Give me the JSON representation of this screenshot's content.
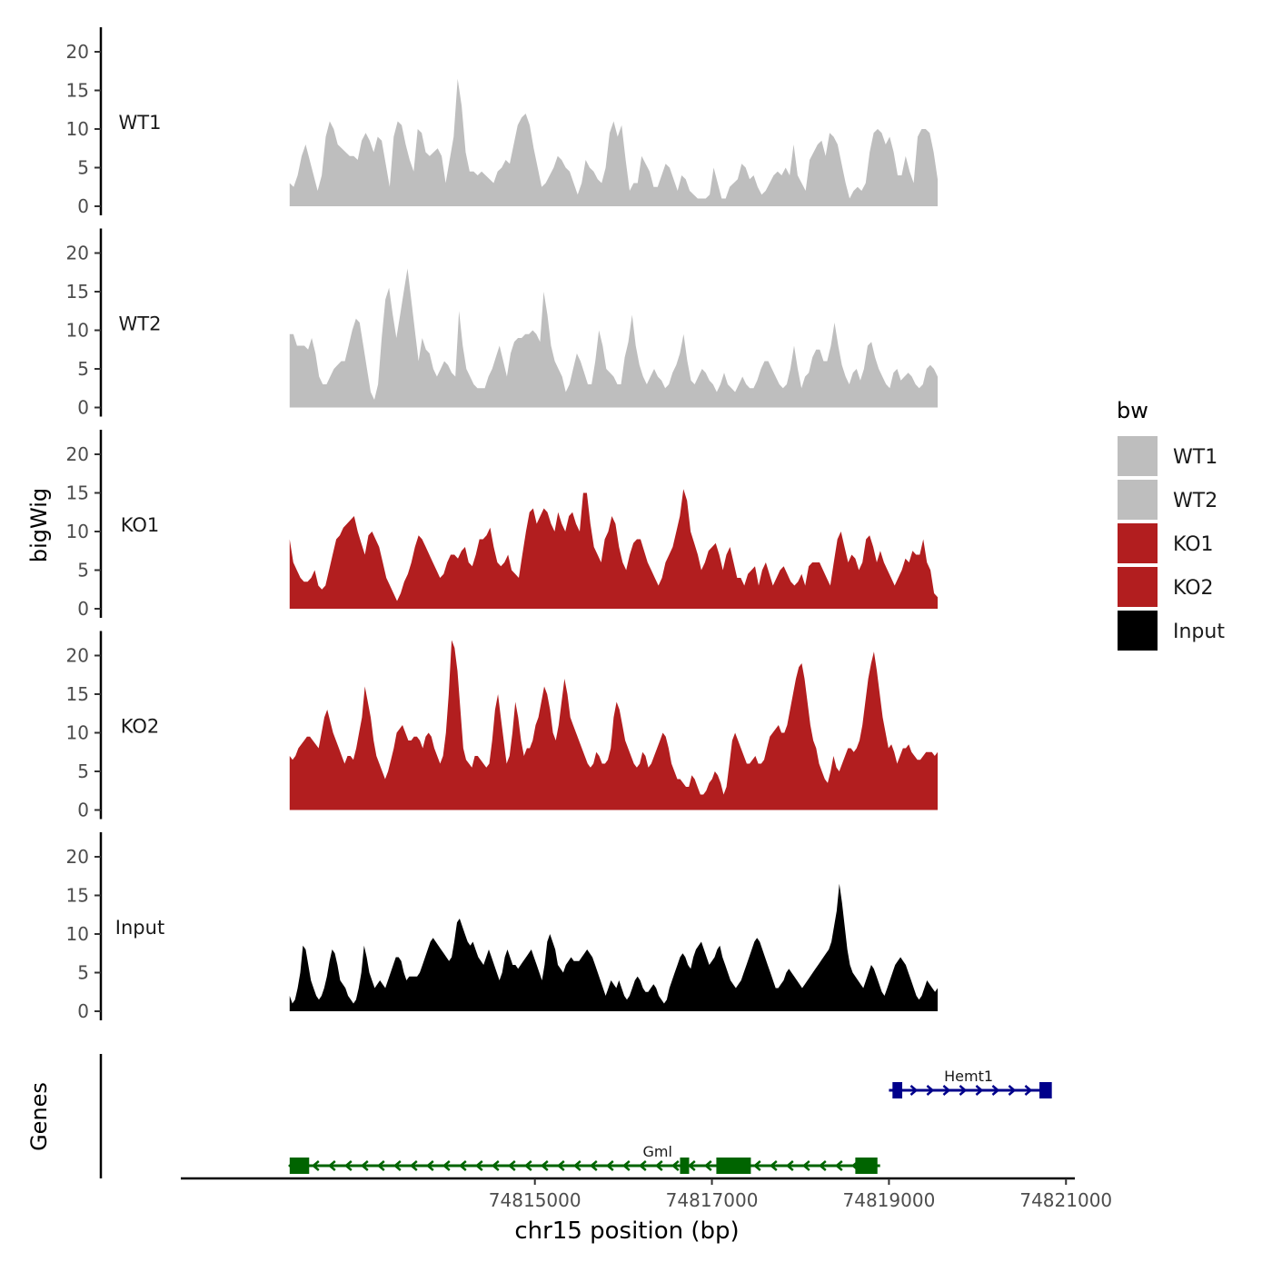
{
  "chart_data": {
    "type": "area",
    "title": "",
    "ylabel": "bigWig",
    "xlabel": "chr15 position (bp)",
    "ylim": [
      0,
      22
    ],
    "yticks": [
      0,
      5,
      10,
      15,
      20
    ],
    "xlim": [
      74811000,
      74821100
    ],
    "xticks": [
      74815000,
      74817000,
      74819000,
      74821000
    ],
    "xtick_labels": [
      "74815000",
      "74817000",
      "74819000",
      "74821000"
    ],
    "track_range": [
      74812230,
      74819550
    ],
    "legend": {
      "title": "bw",
      "position": "right",
      "entries": [
        {
          "label": "WT1",
          "color": "#bebebe"
        },
        {
          "label": "WT2",
          "color": "#bebebe"
        },
        {
          "label": "KO1",
          "color": "#b21e1f"
        },
        {
          "label": "KO2",
          "color": "#b21e1f"
        },
        {
          "label": "Input",
          "color": "#000000"
        }
      ]
    },
    "series": [
      {
        "name": "WT1",
        "color": "#bebebe",
        "values": [
          3,
          2.5,
          4,
          6.5,
          8,
          6,
          4,
          2,
          4,
          9,
          11,
          10,
          8,
          7.5,
          7,
          6.5,
          6.5,
          6,
          8.5,
          9.5,
          8.5,
          7,
          9,
          8.5,
          5.5,
          2.5,
          9,
          11,
          10.5,
          8,
          6,
          4.5,
          10,
          9.5,
          7,
          6.5,
          7,
          7.5,
          6.5,
          3,
          6,
          9,
          16.5,
          13,
          7,
          4.5,
          4.5,
          4,
          4.5,
          4,
          3.5,
          3,
          4.5,
          5,
          6,
          5.5,
          8,
          10.5,
          11.5,
          12,
          10.5,
          7.5,
          5,
          2.5,
          3,
          4,
          5,
          6.5,
          6,
          5,
          4.5,
          3,
          1.5,
          3,
          6,
          5,
          4.5,
          3.5,
          3,
          5,
          9.5,
          11,
          9,
          10.5,
          6,
          2,
          3,
          3,
          6.5,
          5.5,
          4.5,
          2.5,
          2.5,
          4,
          5.5,
          5,
          3.5,
          2,
          4,
          3.5,
          2,
          1.5,
          1,
          1,
          1,
          1.5,
          5,
          3,
          1,
          1,
          2.5,
          3,
          3.5,
          5.5,
          5,
          3.5,
          4,
          2.5,
          1.5,
          2,
          3,
          4,
          4.5,
          4,
          5,
          4,
          8,
          4,
          3,
          2,
          6,
          7,
          8,
          8.5,
          6.5,
          9.5,
          9,
          8,
          5.5,
          3,
          1,
          2,
          2.5,
          2,
          3,
          7,
          9.5,
          10,
          9.5,
          8,
          9,
          7,
          4,
          4,
          6.5,
          4.5,
          3,
          9,
          10,
          10,
          9.5,
          7,
          3.5
        ],
        "label": "WT1"
      },
      {
        "name": "WT2",
        "color": "#bebebe",
        "values": [
          9.5,
          9.5,
          8,
          8,
          8,
          7.5,
          9,
          7,
          4,
          3,
          3,
          4,
          5,
          5.5,
          6,
          6,
          8,
          10,
          11.5,
          11,
          8,
          5,
          2,
          1,
          3,
          9,
          14,
          15.5,
          12,
          9,
          12,
          15,
          18,
          14,
          10,
          6,
          9,
          7.5,
          7,
          5,
          4,
          5,
          6,
          5.5,
          4.5,
          4,
          12.5,
          8,
          5,
          4,
          3,
          2.5,
          2.5,
          2.5,
          4,
          5,
          6.5,
          8,
          6,
          4,
          7,
          8.5,
          9,
          9,
          9.5,
          9.5,
          10,
          9.5,
          8.5,
          15,
          12,
          8,
          6,
          5,
          4,
          2,
          3,
          5,
          7,
          6,
          4.5,
          3,
          3,
          6,
          10,
          8,
          5,
          4.5,
          4,
          3,
          3,
          6.5,
          8.5,
          12,
          8,
          5.5,
          4,
          3,
          4,
          5,
          4,
          3.5,
          2.5,
          3,
          4.5,
          5.5,
          7,
          9.5,
          6,
          3.5,
          3,
          4,
          5,
          4.5,
          3.5,
          3,
          2,
          3,
          4.5,
          3,
          2.5,
          2,
          3,
          4,
          3,
          2.5,
          2.5,
          3.5,
          5,
          6,
          6,
          5,
          4,
          3,
          2.5,
          3,
          5,
          8,
          5,
          2.5,
          4,
          4.5,
          6.5,
          7.5,
          7.5,
          6,
          6,
          8,
          11,
          8,
          5.5,
          4,
          3,
          4.5,
          5,
          3.5,
          5,
          8,
          8.5,
          6.5,
          5,
          4,
          3,
          2.5,
          4.5,
          5,
          3.5,
          4,
          4.5,
          4,
          3,
          2.5,
          3,
          5,
          5.5,
          5,
          4
        ]
      },
      {
        "name": "KO1",
        "color": "#b21e1f",
        "values": [
          9,
          6,
          5,
          4,
          3.5,
          3.5,
          4,
          5,
          3,
          2.5,
          3,
          5,
          7,
          9,
          9.5,
          10.5,
          11,
          11.5,
          12,
          10,
          8.5,
          7,
          9.5,
          10,
          9,
          8,
          6,
          4,
          3,
          2,
          1,
          2,
          3.5,
          4.5,
          6,
          8,
          9.5,
          9,
          8,
          7,
          6,
          5,
          4,
          4.5,
          6,
          7,
          7,
          6.5,
          7.5,
          8,
          6,
          5.5,
          7,
          9,
          9,
          9.5,
          10.5,
          8,
          6,
          5.5,
          6,
          7,
          5,
          4.5,
          4,
          7,
          10,
          12.5,
          13,
          11,
          12,
          13,
          12.5,
          11,
          10,
          12.5,
          11,
          10,
          12,
          12.5,
          11,
          10,
          15,
          15,
          11,
          8,
          7,
          6,
          9,
          10,
          12,
          11,
          8,
          6,
          5,
          7,
          8.5,
          9,
          9,
          7.5,
          6,
          5,
          4,
          3,
          4,
          6,
          7,
          8,
          10,
          12,
          15.5,
          14,
          10,
          8.5,
          7,
          5,
          6,
          7.5,
          8,
          8.5,
          7,
          5,
          7,
          8,
          6,
          4,
          4,
          3,
          4.5,
          5,
          5.5,
          3,
          5,
          6,
          4.5,
          3,
          4,
          5,
          5.5,
          4.5,
          3.5,
          3,
          3.5,
          4.5,
          3,
          5.5,
          6,
          6,
          6,
          5,
          4,
          3,
          6,
          9,
          10,
          8,
          6,
          7,
          6.5,
          5,
          6,
          9,
          9.5,
          8,
          6,
          7.5,
          6,
          5,
          4,
          3,
          4,
          5,
          6.5,
          6,
          7.5,
          7,
          7,
          9,
          6,
          5,
          2,
          1.5
        ]
      },
      {
        "name": "KO2",
        "color": "#b21e1f",
        "values": [
          7,
          6.5,
          7,
          8,
          8.5,
          9,
          9.5,
          9.5,
          9,
          8.5,
          8,
          10,
          12,
          13,
          11.5,
          10,
          9,
          8,
          7,
          6,
          7,
          7,
          6.5,
          8,
          10,
          12,
          16,
          14,
          12,
          9,
          7,
          6,
          5,
          4,
          5,
          6.5,
          8,
          10,
          10.5,
          11,
          10,
          9,
          9,
          9.5,
          9.5,
          9,
          8,
          9.5,
          10,
          9.5,
          8,
          7,
          6,
          7,
          10,
          15,
          22,
          21,
          18,
          13,
          8,
          6.5,
          6,
          5.5,
          7,
          7,
          6.5,
          6,
          5.5,
          6,
          9,
          13,
          15,
          12,
          9,
          6,
          7,
          10,
          14,
          12,
          9,
          7,
          8,
          8,
          9,
          11,
          12,
          14,
          16,
          15,
          13,
          10,
          9,
          11,
          14,
          17,
          15,
          12,
          11,
          10,
          9,
          8,
          7,
          6,
          5.5,
          6,
          7.5,
          7,
          6,
          6,
          6.5,
          8,
          12,
          14,
          13,
          11,
          9,
          8,
          7,
          6,
          5.5,
          6,
          7.5,
          7,
          5.5,
          6,
          7,
          8,
          9,
          10,
          9.5,
          8,
          6,
          5,
          4,
          4,
          3.5,
          3,
          3,
          4.5,
          4,
          3,
          2,
          2,
          2.5,
          3.5,
          4,
          5,
          4.5,
          3.5,
          2,
          3,
          6,
          9,
          10,
          9,
          8,
          7,
          6,
          6,
          6.5,
          7,
          6,
          6,
          6.5,
          8,
          9.5,
          10,
          10.5,
          11,
          10,
          10,
          11,
          13,
          15,
          17,
          18.5,
          19,
          17,
          14,
          11,
          9,
          8,
          6,
          5,
          4,
          3.5,
          5,
          7,
          5.5,
          5,
          6,
          7,
          8,
          8,
          7.5,
          8,
          9,
          11,
          14,
          17,
          19,
          20.5,
          18,
          15,
          12,
          10,
          8,
          8.5,
          7.5,
          6,
          7,
          8,
          8,
          8.5,
          7.5,
          7,
          6.5,
          6.5,
          7,
          7.5,
          7.5,
          7.5,
          7,
          7.5
        ]
      },
      {
        "name": "Input",
        "color": "#000000",
        "values": [
          2,
          1,
          1.5,
          3,
          5,
          8.5,
          8,
          6,
          4,
          3,
          2,
          1.5,
          2,
          3,
          4.5,
          6.5,
          8,
          7.5,
          6,
          4,
          3.5,
          3,
          2,
          1.5,
          1,
          1.5,
          3,
          5,
          8.5,
          7,
          5,
          4,
          3,
          3.5,
          4,
          3.5,
          3,
          4,
          5,
          6,
          7,
          7,
          6.5,
          5,
          4,
          4.5,
          4.5,
          4.5,
          4.5,
          5,
          6,
          7,
          8,
          9,
          9.5,
          9,
          8.5,
          8,
          7.5,
          7,
          6.5,
          7,
          9,
          11.5,
          12,
          11,
          10,
          9,
          8.5,
          9,
          8,
          7,
          6.5,
          6,
          7,
          8,
          7,
          6,
          5,
          4,
          5,
          7,
          8,
          7,
          6,
          6,
          5.5,
          6,
          6.5,
          7,
          7.5,
          8,
          7,
          6,
          5,
          4,
          6,
          9,
          10,
          9,
          8,
          6,
          5.5,
          5,
          6,
          6.5,
          7,
          6.5,
          6.5,
          6.5,
          7,
          7.5,
          8,
          7.5,
          7,
          6,
          5,
          4,
          3,
          2,
          3,
          4,
          3.5,
          3,
          4,
          3,
          2,
          1.5,
          2,
          3,
          4,
          4.5,
          4,
          3,
          2.5,
          2.5,
          3,
          3.5,
          3,
          2,
          1.5,
          1,
          1.5,
          3,
          4,
          5,
          6,
          7,
          7.5,
          7,
          6,
          5.5,
          7,
          8,
          8.5,
          9,
          8,
          7,
          6,
          6.5,
          7,
          8,
          8.5,
          7,
          6,
          5,
          4,
          3.5,
          3,
          3.5,
          4,
          5,
          6,
          7,
          8,
          9,
          9.5,
          9,
          8,
          7,
          6,
          5,
          4,
          3,
          3,
          3.5,
          4,
          5,
          5.5,
          5,
          4.5,
          4,
          3.5,
          3,
          3.5,
          4,
          4.5,
          5,
          5.5,
          6,
          6.5,
          7,
          7.5,
          8,
          9,
          11,
          13,
          16.5,
          14,
          11,
          8,
          6,
          5,
          4.5,
          4,
          3.5,
          3,
          4,
          5,
          6,
          5.5,
          4.5,
          3.5,
          2.5,
          2,
          3,
          4,
          5,
          6,
          6.5,
          7,
          6.5,
          6,
          5,
          4,
          3,
          2,
          1.5,
          2,
          3,
          4,
          3.5,
          3,
          2.5,
          3
        ]
      }
    ],
    "genes_track": {
      "label": "Genes",
      "genes": [
        {
          "name": "Hemt1",
          "strand": "+",
          "color": "#00008b",
          "start": 74819000,
          "end": 74820800,
          "exons": [
            [
              74819040,
              74819150
            ],
            [
              74820700,
              74820840
            ]
          ]
        },
        {
          "name": "Gml",
          "strand": "-",
          "color": "#006400",
          "start": 74812230,
          "end": 74818900,
          "exons": [
            [
              74812230,
              74812450
            ],
            [
              74816640,
              74816720
            ],
            [
              74817050,
              74817440
            ],
            [
              74818620,
              74818870
            ]
          ]
        }
      ]
    }
  }
}
